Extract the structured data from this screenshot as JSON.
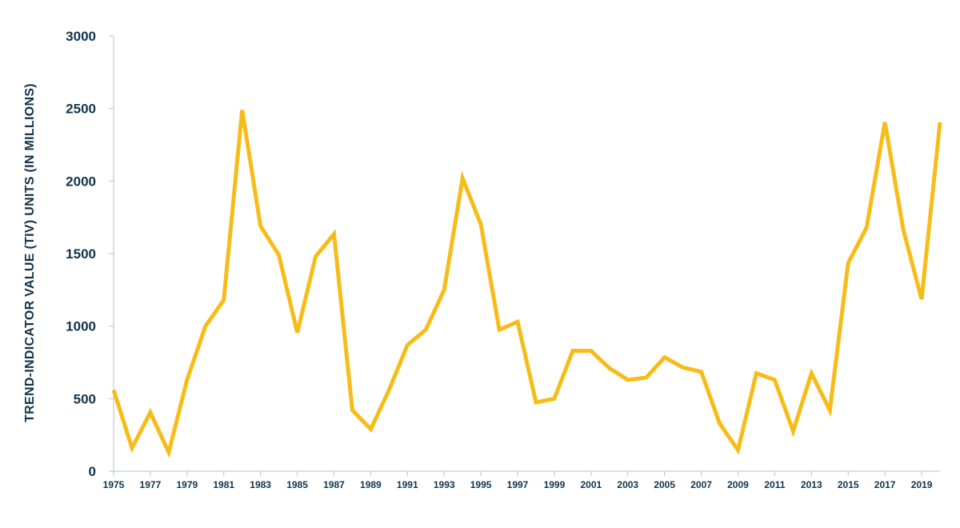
{
  "chart_data": {
    "type": "line",
    "title": "",
    "xlabel": "",
    "ylabel": "TREND-INDICATOR VALUE (TIV) UNITS (IN MILLIONS)",
    "ylim": [
      0,
      3000
    ],
    "yticks": [
      0,
      500,
      1000,
      1500,
      2000,
      2500,
      3000
    ],
    "xlim": [
      1975,
      2020
    ],
    "xticks": [
      1975,
      1977,
      1979,
      1981,
      1983,
      1985,
      1987,
      1989,
      1991,
      1993,
      1995,
      1997,
      1999,
      2001,
      2003,
      2005,
      2007,
      2009,
      2011,
      2013,
      2015,
      2017,
      2019
    ],
    "grid": false,
    "line_color": "#f7bc17",
    "x": [
      1975,
      1976,
      1977,
      1978,
      1979,
      1980,
      1981,
      1982,
      1983,
      1984,
      1985,
      1986,
      1987,
      1988,
      1989,
      1990,
      1991,
      1992,
      1993,
      1994,
      1995,
      1996,
      1997,
      1998,
      1999,
      2000,
      2001,
      2002,
      2003,
      2004,
      2005,
      2006,
      2007,
      2008,
      2009,
      2010,
      2011,
      2012,
      2013,
      2014,
      2015,
      2016,
      2017,
      2018,
      2019,
      2020
    ],
    "series": [
      {
        "values": [
          560,
          160,
          405,
          130,
          630,
          1000,
          1180,
          2490,
          1690,
          1490,
          955,
          1480,
          1635,
          420,
          290,
          560,
          870,
          975,
          1250,
          2020,
          1700,
          975,
          1030,
          475,
          500,
          830,
          830,
          710,
          630,
          645,
          785,
          715,
          685,
          330,
          145,
          675,
          630,
          275,
          675,
          420,
          1435,
          1680,
          2405,
          1665,
          1185,
          2405
        ]
      }
    ]
  }
}
